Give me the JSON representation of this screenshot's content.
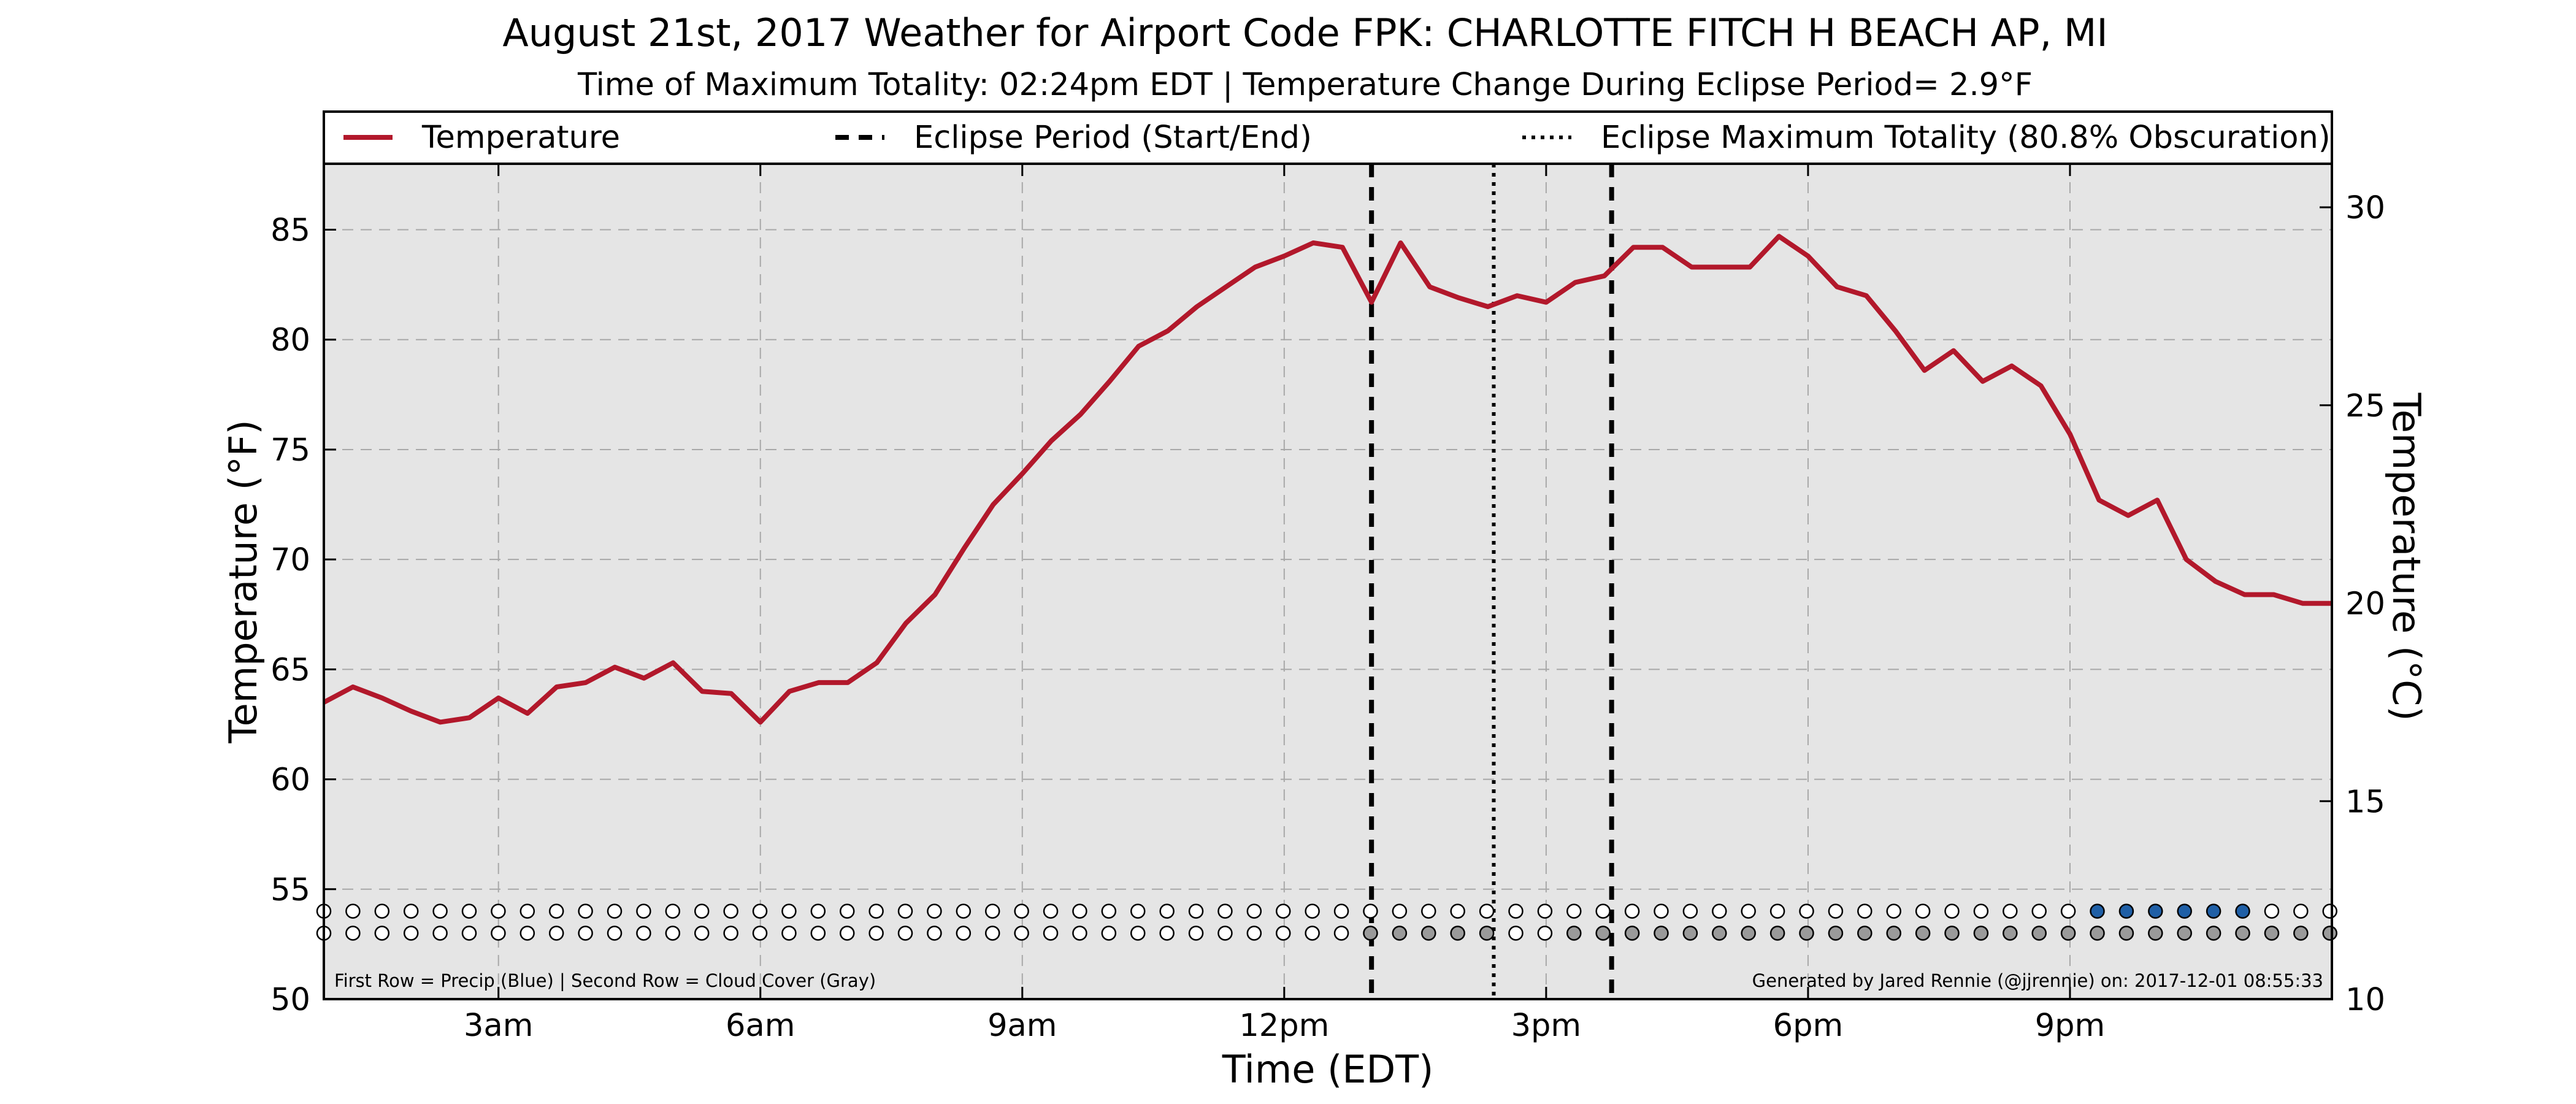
{
  "chart_data": {
    "type": "line",
    "title": "August 21st, 2017 Weather for Airport Code FPK: CHARLOTTE FITCH H BEACH AP, MI",
    "subtitle": "Time of Maximum Totality: 02:24pm EDT | Temperature Change During Eclipse Period= 2.9°F",
    "xlabel": "Time (EDT)",
    "ylabel": "Temperature (°F)",
    "ylabel_right": "Temperature (°C)",
    "ylim": [
      50,
      88
    ],
    "ylim_right_c": [
      10,
      31.1
    ],
    "xlim": [
      1,
      24
    ],
    "grid": true,
    "legend_position": "top",
    "x_tick_labels": [
      "3am",
      "6am",
      "9am",
      "12pm",
      "3pm",
      "6pm",
      "9pm"
    ],
    "x_tick_values": [
      3,
      6,
      9,
      12,
      15,
      18,
      21
    ],
    "y_tick_labels": [
      "50",
      "55",
      "60",
      "65",
      "70",
      "75",
      "80",
      "85"
    ],
    "y_tick_values": [
      50,
      55,
      60,
      65,
      70,
      75,
      80,
      85
    ],
    "y_right_tick_labels": [
      "10",
      "15",
      "20",
      "25",
      "30"
    ],
    "y_right_tick_values": [
      10,
      15,
      20,
      25,
      30
    ],
    "colors": {
      "temperature": "#b2182b",
      "precip": "#1f5fa6",
      "cloud": "#9a9a9a",
      "plot_bg": "#e5e5e5",
      "grid": "#a8a8a8"
    },
    "series": [
      {
        "name": "Temperature",
        "x": [
          1.0,
          1.333,
          1.667,
          2.0,
          2.333,
          2.667,
          3.0,
          3.333,
          3.667,
          4.0,
          4.333,
          4.667,
          5.0,
          5.333,
          5.667,
          6.0,
          6.333,
          6.667,
          7.0,
          7.333,
          7.667,
          8.0,
          8.333,
          8.667,
          9.0,
          9.333,
          9.667,
          10.0,
          10.333,
          10.667,
          11.0,
          11.333,
          11.667,
          12.0,
          12.333,
          12.667,
          13.0,
          13.333,
          13.667,
          14.0,
          14.333,
          14.667,
          15.0,
          15.333,
          15.667,
          16.0,
          16.333,
          16.667,
          17.0,
          17.333,
          17.667,
          18.0,
          18.333,
          18.667,
          19.0,
          19.333,
          19.667,
          20.0,
          20.333,
          20.667,
          21.0,
          21.333,
          21.667,
          22.0,
          22.333,
          22.667,
          23.0,
          23.333,
          23.667,
          24.0
        ],
        "values": [
          63.5,
          64.2,
          63.7,
          63.1,
          62.6,
          62.8,
          63.7,
          63.0,
          64.2,
          64.4,
          65.1,
          64.6,
          65.3,
          64.0,
          63.9,
          62.6,
          64.0,
          64.4,
          64.4,
          65.3,
          67.1,
          68.4,
          70.5,
          72.5,
          73.9,
          75.4,
          76.6,
          78.1,
          79.7,
          80.4,
          81.5,
          82.4,
          83.3,
          83.8,
          84.4,
          84.2,
          81.7,
          84.4,
          82.4,
          81.9,
          81.5,
          82.0,
          81.7,
          82.6,
          82.9,
          84.2,
          84.2,
          83.3,
          83.3,
          83.3,
          84.7,
          83.8,
          82.4,
          82.0,
          80.4,
          78.6,
          79.5,
          78.1,
          78.8,
          77.9,
          75.7,
          72.7,
          72.0,
          72.7,
          70.0,
          69.0,
          68.4,
          68.4,
          68.0,
          68.0
        ]
      }
    ],
    "eclipse_start": 13.0,
    "eclipse_end": 15.75,
    "eclipse_max": 14.4,
    "legend": [
      {
        "label": "Temperature",
        "style": "solid"
      },
      {
        "label": "Eclipse Period (Start/End)",
        "style": "dashed"
      },
      {
        "label": "Eclipse Maximum Totality (80.8% Obscuration)",
        "style": "dotted"
      }
    ],
    "indicator_rows": {
      "x_start": 1.0,
      "x_step": 0.333,
      "count": 70,
      "precip": [
        0,
        0,
        0,
        0,
        0,
        0,
        0,
        0,
        0,
        0,
        0,
        0,
        0,
        0,
        0,
        0,
        0,
        0,
        0,
        0,
        0,
        0,
        0,
        0,
        0,
        0,
        0,
        0,
        0,
        0,
        0,
        0,
        0,
        0,
        0,
        0,
        0,
        0,
        0,
        0,
        0,
        0,
        0,
        0,
        0,
        0,
        0,
        0,
        0,
        0,
        0,
        0,
        0,
        0,
        0,
        0,
        0,
        0,
        0,
        0,
        0,
        1,
        1,
        1,
        1,
        1,
        1,
        0,
        0,
        0
      ],
      "cloud": [
        0,
        0,
        0,
        0,
        0,
        0,
        0,
        0,
        0,
        0,
        0,
        0,
        0,
        0,
        0,
        0,
        0,
        0,
        0,
        0,
        0,
        0,
        0,
        0,
        0,
        0,
        0,
        0,
        0,
        0,
        0,
        0,
        0,
        0,
        0,
        0,
        1,
        1,
        1,
        1,
        1,
        0,
        0,
        1,
        1,
        1,
        1,
        1,
        1,
        1,
        1,
        1,
        1,
        1,
        1,
        1,
        1,
        1,
        1,
        1,
        1,
        1,
        1,
        1,
        1,
        1,
        1,
        1,
        1,
        1
      ]
    },
    "footer_left": "First Row = Precip (Blue) | Second Row = Cloud Cover (Gray)",
    "footer_right": "Generated by Jared Rennie (@jjrennie) on: 2017-12-01 08:55:33"
  }
}
